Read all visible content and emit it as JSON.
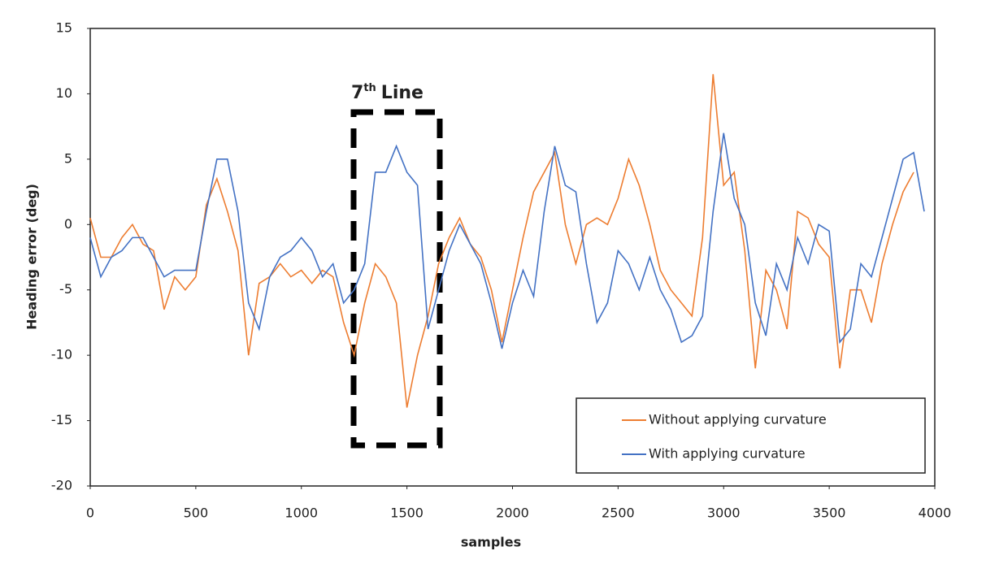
{
  "chart_data": {
    "type": "line",
    "x_label": "samples",
    "y_label": "Heading error (deg)",
    "annotation": {
      "base": "7",
      "sup": "th",
      "tail": "Line"
    },
    "x": [
      0,
      50,
      100,
      150,
      200,
      250,
      300,
      350,
      400,
      450,
      500,
      550,
      600,
      650,
      700,
      750,
      800,
      850,
      900,
      950,
      1000,
      1050,
      1100,
      1150,
      1200,
      1250,
      1300,
      1350,
      1400,
      1450,
      1500,
      1550,
      1600,
      1650,
      1700,
      1750,
      1800,
      1850,
      1900,
      1950,
      2000,
      2050,
      2100,
      2150,
      2200,
      2250,
      2300,
      2350,
      2400,
      2450,
      2500,
      2550,
      2600,
      2650,
      2700,
      2750,
      2800,
      2850,
      2900,
      2950,
      3000,
      3050,
      3100,
      3150,
      3200,
      3250,
      3300,
      3350,
      3400,
      3450,
      3500,
      3550,
      3600,
      3650,
      3700,
      3750,
      3800,
      3850,
      3900,
      3950
    ],
    "series": [
      {
        "name": "Without applying curvature",
        "color": "#ed7d31",
        "values": [
          0.5,
          -2.5,
          -2.5,
          -1,
          0,
          -1.5,
          -2,
          -6.5,
          -4,
          -5,
          -4,
          1.5,
          3.5,
          1,
          -2,
          -10,
          -4.5,
          -4,
          -3,
          -4,
          -3.5,
          -4.5,
          -3.5,
          -4,
          -7.5,
          -10,
          -6,
          -3,
          -4,
          -6,
          -14,
          -10,
          -7,
          -3,
          -1,
          0.5,
          -1.5,
          -2.5,
          -5,
          -9,
          -5,
          -1,
          2.5,
          4,
          5.5,
          0,
          -3,
          0,
          0.5,
          0,
          2,
          5,
          3,
          0,
          -3.5,
          -5,
          -6,
          -7,
          -1,
          11.5,
          3,
          4,
          -2,
          -11,
          -3.5,
          -5,
          -8,
          1,
          0.5,
          -1.5,
          -2.5,
          -11,
          -5,
          -5,
          -7.5,
          -3,
          0,
          2.5,
          4,
          null
        ]
      },
      {
        "name": "With applying curvature",
        "color": "#4472c4",
        "values": [
          -1,
          -4,
          -2.5,
          -2,
          -1,
          -1,
          -2.5,
          -4,
          -3.5,
          -3.5,
          -3.5,
          1,
          5,
          5,
          1,
          -6,
          -8,
          -4,
          -2.5,
          -2,
          -1,
          -2,
          -4,
          -3,
          -6,
          -5,
          -3,
          4,
          4,
          6,
          4,
          3,
          -8,
          -5,
          -2,
          0,
          -1.5,
          -3,
          -6,
          -9.5,
          -6,
          -3.5,
          -5.5,
          1,
          6,
          3,
          2.5,
          -3,
          -7.5,
          -6,
          -2,
          -3,
          -5,
          -2.5,
          -5,
          -6.5,
          -9,
          -8.5,
          -7,
          1,
          7,
          2,
          0,
          -6,
          -8.5,
          -3,
          -5,
          -1,
          -3,
          0,
          -0.5,
          -9,
          -8,
          -3,
          -4,
          -1,
          2,
          5,
          5.5,
          1
        ]
      }
    ],
    "xlim": [
      0,
      4000
    ],
    "xticks": [
      0,
      500,
      1000,
      1500,
      2000,
      2500,
      3000,
      3500,
      4000
    ],
    "ylim": [
      -20,
      15
    ],
    "yticks": [
      -20,
      -15,
      -10,
      -5,
      0,
      5,
      10,
      15
    ],
    "legend": "lower right"
  }
}
